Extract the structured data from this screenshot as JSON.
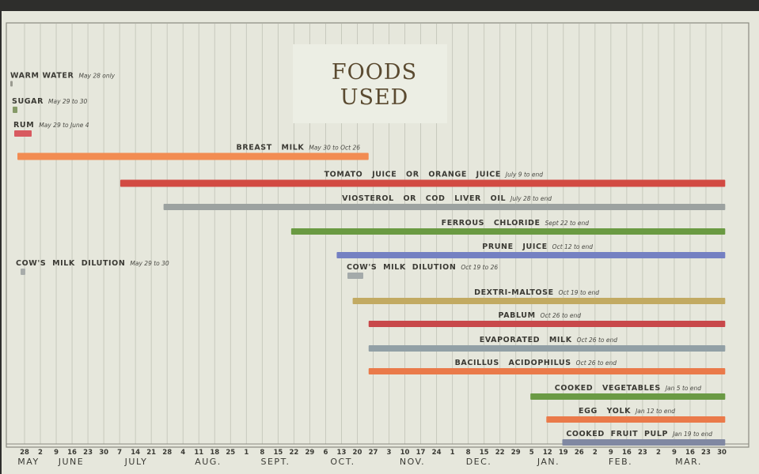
{
  "chart_data": {
    "type": "bar",
    "orientation": "horizontal-timeline",
    "title": [
      "FOODS",
      "USED"
    ],
    "grid": true,
    "x_start": "May 28",
    "x_end": "Mar 30",
    "x_tick_labels": [
      "28",
      "2",
      "9",
      "16",
      "23",
      "30",
      "7",
      "14",
      "21",
      "28",
      "4",
      "11",
      "18",
      "25",
      "1",
      "8",
      "15",
      "22",
      "29",
      "6",
      "13",
      "20",
      "27",
      "3",
      "10",
      "17",
      "24",
      "1",
      "8",
      "15",
      "22",
      "29",
      "5",
      "12",
      "19",
      "26",
      "2",
      "9",
      "16",
      "23",
      "2",
      "9",
      "16",
      "23",
      "30"
    ],
    "month_labels": [
      "MAY",
      "JUNE",
      "JULY",
      "AUG.",
      "SEPT.",
      "OCT.",
      "NOV.",
      "DEC.",
      "JAN.",
      "FEB.",
      "MAR."
    ],
    "series": [
      {
        "name": "WARM WATER",
        "note": "May 28 only",
        "start": "May 28",
        "end": "May 28",
        "color": "#9a9a90"
      },
      {
        "name": "SUGAR",
        "note": "May 29 to 30",
        "start": "May 29",
        "end": "May 30",
        "color": "#869a68"
      },
      {
        "name": "RUM",
        "note": "May 29 to June 4",
        "start": "May 29",
        "end": "Jun 4",
        "color": "#d85a60"
      },
      {
        "name": "BREAST   MILK",
        "note": "May 30 to Oct 26",
        "start": "May 30",
        "end": "Oct 26",
        "color": "#f28c52"
      },
      {
        "name": "TOMATO   JUICE   OR   ORANGE   JUICE",
        "note": "July 9 to end",
        "start": "Jul 9",
        "end": "end",
        "color": "#d24a42"
      },
      {
        "name": "VIOSTEROL   OR   COD   LIVER   OIL",
        "note": "July 28 to end",
        "start": "Jul 28",
        "end": "end",
        "color": "#9ca2a0"
      },
      {
        "name": "FERROUS   CHLORIDE",
        "note": "Sept 22 to end",
        "start": "Sep 22",
        "end": "end",
        "color": "#6a9a42"
      },
      {
        "name": "PRUNE   JUICE",
        "note": "Oct 12 to end",
        "start": "Oct 12",
        "end": "end",
        "color": "#7480c2"
      },
      {
        "name": "COW'S  MILK  DILUTION",
        "note": "May 29 to 30",
        "start": "May 29",
        "end": "May 30",
        "color": "#a8acaa"
      },
      {
        "name": "COW'S  MILK  DILUTION",
        "note": "Oct 19 to 26",
        "start": "Oct 19",
        "end": "Oct 26",
        "color": "#a4aaaa"
      },
      {
        "name": "DEXTRI-MALTOSE",
        "note": "Oct 19 to end",
        "start": "Oct 19",
        "end": "end",
        "color": "#c2aa62"
      },
      {
        "name": "PABLUM",
        "note": "Oct 26 to end",
        "start": "Oct 26",
        "end": "end",
        "color": "#c8484a"
      },
      {
        "name": "EVAPORATED   MILK",
        "note": "Oct 26 to end",
        "start": "Oct 26",
        "end": "end",
        "color": "#92a0a6"
      },
      {
        "name": "BACILLUS   ACIDOPHILUS",
        "note": "Oct 26 to end",
        "start": "Oct 26",
        "end": "end",
        "color": "#ea7a4a"
      },
      {
        "name": "COOKED   VEGETABLES",
        "note": "Jan 5 to end",
        "start": "Jan 5",
        "end": "end",
        "color": "#6a9a44"
      },
      {
        "name": "EGG   YOLK",
        "note": "Jan 12 to end",
        "start": "Jan 12",
        "end": "end",
        "color": "#ea7a4a"
      },
      {
        "name": "COOKED  FRUIT  PULP",
        "note": "Jan 19 to end",
        "start": "Jan 19",
        "end": "end",
        "color": "#8088a2"
      }
    ]
  }
}
